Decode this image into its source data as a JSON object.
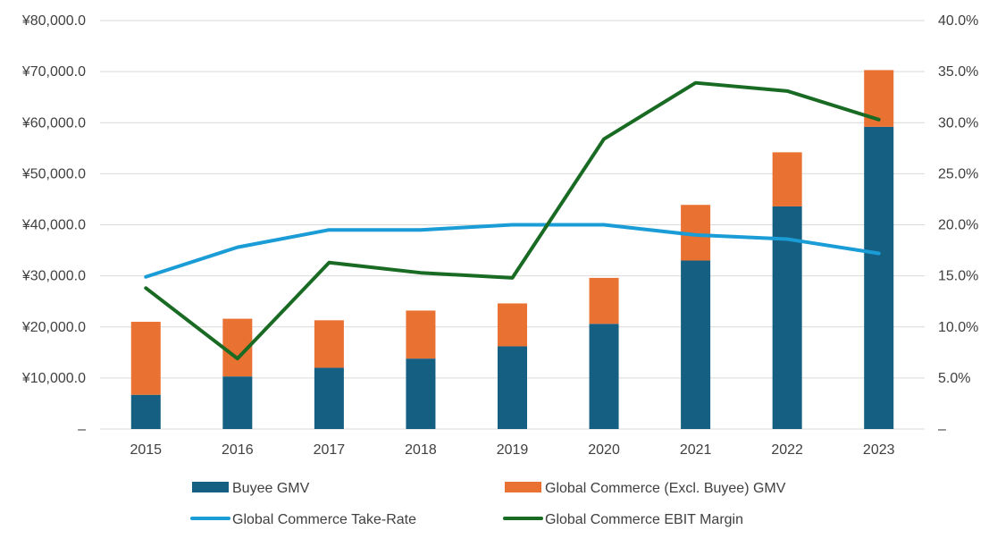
{
  "chart_data": {
    "type": "bar",
    "title": "",
    "categories": [
      "2015",
      "2016",
      "2017",
      "2018",
      "2019",
      "2020",
      "2021",
      "2022",
      "2023"
    ],
    "series": [
      {
        "name": "Buyee GMV",
        "kind": "stacked-bar",
        "axis": "left",
        "color": "#156082",
        "values": [
          6700,
          10300,
          12000,
          13800,
          16200,
          20600,
          33000,
          43600,
          59200
        ]
      },
      {
        "name": "Global Commerce (Excl. Buyee) GMV",
        "kind": "stacked-bar",
        "axis": "left",
        "color": "#E97132",
        "values": [
          14300,
          11300,
          9300,
          9400,
          8400,
          9000,
          10900,
          10600,
          11100
        ]
      },
      {
        "name": "Global Commerce Take-Rate",
        "kind": "line",
        "axis": "right",
        "color": "#1A9CD6",
        "values": [
          14.9,
          17.8,
          19.5,
          19.5,
          20.0,
          20.0,
          19.0,
          18.6,
          17.2
        ]
      },
      {
        "name": "Global Commerce EBIT Margin",
        "kind": "line",
        "axis": "right",
        "color": "#196B24",
        "values": [
          13.8,
          6.9,
          16.3,
          15.3,
          14.8,
          28.4,
          33.9,
          33.1,
          30.3
        ]
      }
    ],
    "y_left": {
      "ylim": [
        0,
        80000
      ],
      "tick_labels": [
        "–",
        "¥10,000.0",
        "¥20,000.0",
        "¥30,000.0",
        "¥40,000.0",
        "¥50,000.0",
        "¥60,000.0",
        "¥70,000.0",
        "¥80,000.0"
      ]
    },
    "y_right": {
      "ylim": [
        0,
        40
      ],
      "tick_labels": [
        "–",
        "5.0%",
        "10.0%",
        "15.0%",
        "20.0%",
        "25.0%",
        "30.0%",
        "35.0%",
        "40.0%"
      ]
    },
    "grid": true,
    "legend_position": "bottom"
  }
}
